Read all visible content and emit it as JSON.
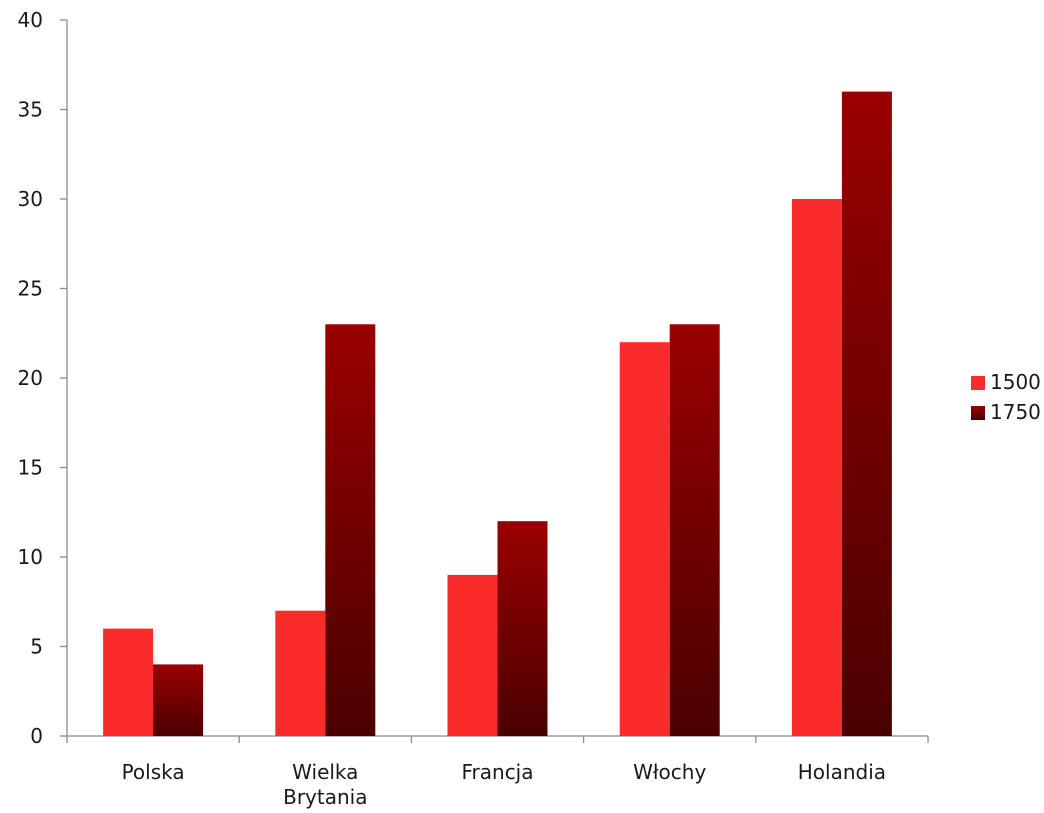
{
  "chart_data": {
    "type": "bar",
    "title": "",
    "xlabel": "",
    "ylabel": "",
    "ylim": [
      0,
      40
    ],
    "yticks": [
      0,
      5,
      10,
      15,
      20,
      25,
      30,
      35,
      40
    ],
    "grid": false,
    "legend_position": "right",
    "categories": [
      [
        "Polska"
      ],
      [
        "Wielka",
        "Brytania"
      ],
      [
        "Francja"
      ],
      [
        "Włochy"
      ],
      [
        "Holandia"
      ]
    ],
    "series": [
      {
        "name": "1500",
        "values": [
          6,
          7,
          9,
          22,
          30
        ],
        "color": "#f92b2b"
      },
      {
        "name": "1750",
        "values": [
          4,
          23,
          12,
          23,
          36
        ],
        "color_top": "#9a0000",
        "color_bottom": "#4a0000"
      }
    ]
  }
}
